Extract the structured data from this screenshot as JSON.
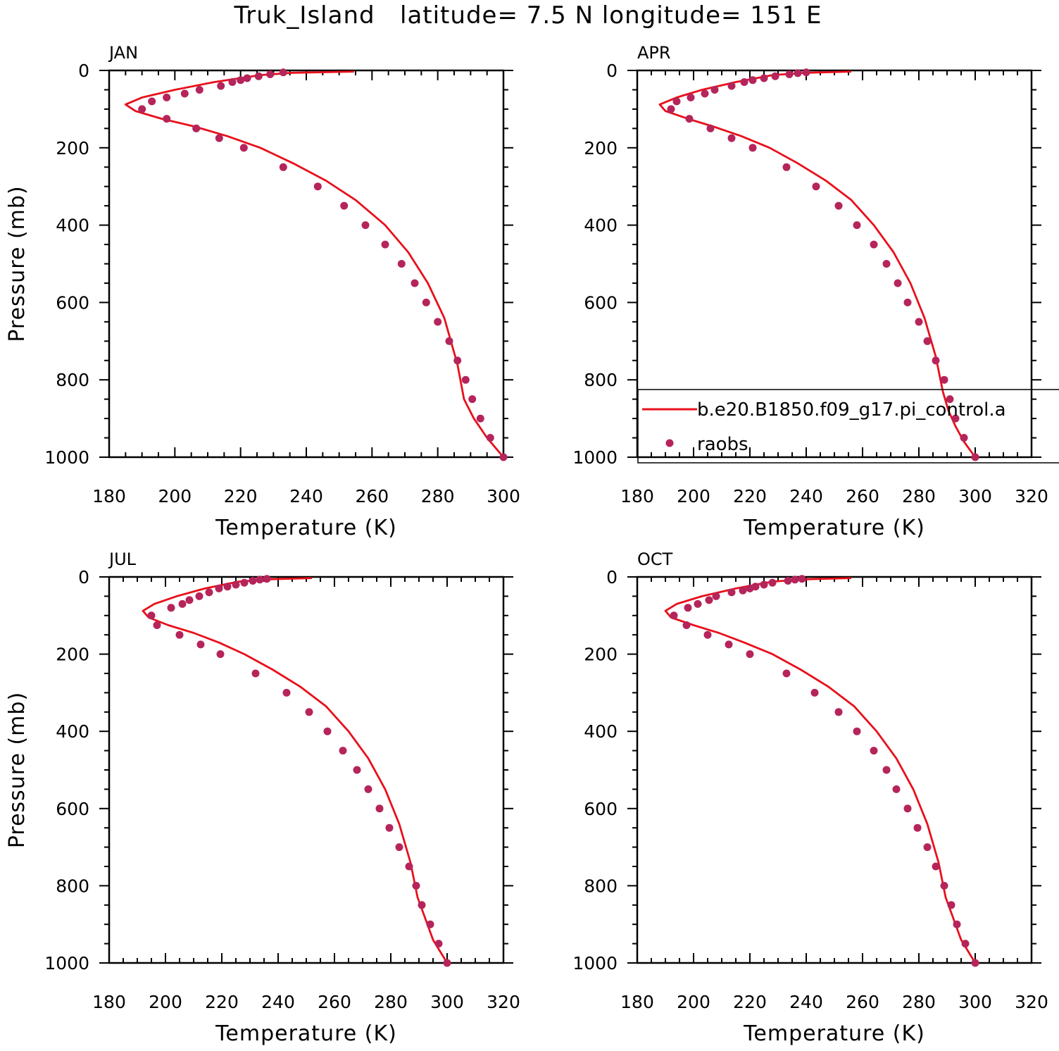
{
  "figure_title": "Truk_Island   latitude= 7.5 N longitude= 151 E",
  "legend": {
    "model_label": "b.e20.B1850.f09_g17.pi_control.a",
    "obs_label": "raobs"
  },
  "colors": {
    "model_line": "#e8101b",
    "obs_marker": "#b5245a",
    "axes": "#000000"
  },
  "chart_data": [
    {
      "type": "line",
      "panel": "JAN",
      "title": "JAN",
      "xlabel": "Temperature (K)",
      "ylabel": "Pressure (mb)",
      "xlim": [
        180,
        300
      ],
      "ylim": [
        1000,
        0
      ],
      "y_reversed": true,
      "xticks": [
        180,
        200,
        220,
        240,
        260,
        280,
        300
      ],
      "yticks": [
        0,
        200,
        400,
        600,
        800,
        1000
      ],
      "series": [
        {
          "name": "b.e20.B1850.f09_g17.pi_control.a",
          "kind": "line",
          "x": [
            254.5,
            236,
            226,
            212,
            200,
            190,
            185,
            188,
            196,
            206,
            216,
            226,
            236,
            246,
            255,
            264,
            271,
            277,
            282,
            286,
            288,
            291,
            295,
            300
          ],
          "y": [
            3,
            6,
            12,
            30,
            50,
            70,
            88,
            105,
            125,
            145,
            170,
            200,
            240,
            285,
            335,
            400,
            470,
            550,
            640,
            760,
            850,
            900,
            950,
            1000
          ]
        },
        {
          "name": "raobs",
          "kind": "scatter",
          "x": [
            233,
            229,
            225.5,
            222,
            220,
            217.5,
            214,
            207.5,
            203,
            197.5,
            193,
            190,
            197.5,
            206.5,
            213.5,
            221,
            233,
            243.5,
            251.5,
            258,
            264,
            269,
            273,
            276.5,
            280,
            283.5,
            286,
            288.5,
            290.5,
            293,
            296,
            300
          ],
          "y": [
            5,
            10,
            15,
            20,
            25,
            30,
            40,
            50,
            60,
            70,
            80,
            100,
            125,
            150,
            175,
            200,
            250,
            300,
            350,
            400,
            450,
            500,
            550,
            600,
            650,
            700,
            750,
            800,
            850,
            900,
            950,
            1000
          ]
        }
      ]
    },
    {
      "type": "line",
      "panel": "APR",
      "title": "APR",
      "xlabel": "Temperature (K)",
      "ylabel": "",
      "xlim": [
        180,
        320
      ],
      "ylim": [
        1000,
        0
      ],
      "y_reversed": true,
      "xticks": [
        180,
        200,
        220,
        240,
        260,
        280,
        300,
        320
      ],
      "yticks": [
        0,
        200,
        400,
        600,
        800,
        1000
      ],
      "series": [
        {
          "name": "b.e20.B1850.f09_g17.pi_control.a",
          "kind": "line",
          "x": [
            256,
            240,
            228,
            215,
            203,
            194,
            188,
            190,
            198,
            207,
            217,
            227,
            237,
            247,
            256,
            264,
            271,
            277,
            282,
            286,
            288.5,
            290.5,
            293,
            296,
            300
          ],
          "y": [
            3,
            6,
            12,
            30,
            50,
            70,
            88,
            105,
            125,
            145,
            170,
            200,
            240,
            285,
            335,
            400,
            470,
            550,
            640,
            740,
            830,
            880,
            920,
            960,
            1000
          ]
        },
        {
          "name": "raobs",
          "kind": "scatter",
          "x": [
            240,
            237,
            234,
            229,
            225,
            221,
            218,
            213.5,
            207.5,
            204,
            199,
            194,
            192,
            198.5,
            206,
            213.5,
            221,
            233,
            243.5,
            251.5,
            258,
            264,
            268.5,
            272.5,
            276,
            280,
            283,
            286,
            289,
            291,
            293,
            296,
            300
          ],
          "y": [
            5,
            7,
            10,
            15,
            20,
            25,
            30,
            40,
            50,
            60,
            70,
            80,
            100,
            125,
            150,
            175,
            200,
            250,
            300,
            350,
            400,
            450,
            500,
            550,
            600,
            650,
            700,
            750,
            800,
            850,
            900,
            950,
            1000
          ]
        }
      ]
    },
    {
      "type": "line",
      "panel": "JUL",
      "title": "JUL",
      "xlabel": "Temperature (K)",
      "ylabel": "Pressure (mb)",
      "xlim": [
        180,
        320
      ],
      "ylim": [
        1000,
        0
      ],
      "y_reversed": true,
      "xticks": [
        180,
        200,
        220,
        240,
        260,
        280,
        300,
        320
      ],
      "yticks": [
        0,
        200,
        400,
        600,
        800,
        1000
      ],
      "series": [
        {
          "name": "b.e20.B1850.f09_g17.pi_control.a",
          "kind": "line",
          "x": [
            252,
            237,
            226,
            214,
            204,
            196,
            192,
            194,
            201,
            210,
            219,
            228,
            238,
            248,
            257,
            265,
            272,
            278,
            283,
            287,
            289.5,
            292,
            295,
            300
          ],
          "y": [
            3,
            6,
            12,
            30,
            50,
            70,
            88,
            105,
            125,
            145,
            170,
            200,
            240,
            285,
            335,
            400,
            470,
            550,
            640,
            740,
            830,
            880,
            940,
            1000
          ]
        },
        {
          "name": "raobs",
          "kind": "scatter",
          "x": [
            236,
            233.5,
            231,
            228,
            225,
            222,
            219,
            215.5,
            212,
            208.5,
            206,
            202,
            195,
            197,
            205,
            212.5,
            219.5,
            232,
            243,
            251,
            257.5,
            263,
            268,
            272,
            276,
            279.5,
            283,
            286.5,
            289,
            291,
            294,
            297,
            300
          ],
          "y": [
            5,
            7,
            10,
            15,
            20,
            25,
            30,
            40,
            50,
            60,
            70,
            80,
            100,
            125,
            150,
            175,
            200,
            250,
            300,
            350,
            400,
            450,
            500,
            550,
            600,
            650,
            700,
            750,
            800,
            850,
            900,
            950,
            1000
          ]
        }
      ]
    },
    {
      "type": "line",
      "panel": "OCT",
      "title": "OCT",
      "xlabel": "Temperature (K)",
      "ylabel": "",
      "xlim": [
        180,
        320
      ],
      "ylim": [
        1000,
        0
      ],
      "y_reversed": true,
      "xticks": [
        180,
        200,
        220,
        240,
        260,
        280,
        300,
        320
      ],
      "yticks": [
        0,
        200,
        400,
        600,
        800,
        1000
      ],
      "series": [
        {
          "name": "b.e20.B1850.f09_g17.pi_control.a",
          "kind": "line",
          "x": [
            256,
            240,
            228,
            215,
            203,
            194,
            190,
            192,
            200,
            209,
            218,
            228,
            238,
            248,
            257,
            265,
            272,
            278,
            283,
            287,
            289.5,
            292,
            295,
            300
          ],
          "y": [
            3,
            6,
            12,
            30,
            50,
            70,
            88,
            105,
            125,
            145,
            170,
            200,
            240,
            285,
            335,
            400,
            470,
            550,
            640,
            740,
            830,
            880,
            940,
            1000
          ]
        },
        {
          "name": "raobs",
          "kind": "scatter",
          "x": [
            238.5,
            236,
            233.5,
            228,
            225,
            222,
            220,
            217.5,
            213.5,
            208,
            205.5,
            201.5,
            198,
            193,
            197.5,
            205,
            212.5,
            220,
            233,
            243,
            251.5,
            258,
            264,
            268.5,
            272,
            276,
            279.5,
            283,
            286,
            289,
            291.5,
            293.5,
            296.5,
            300
          ],
          "y": [
            5,
            7,
            10,
            15,
            20,
            25,
            30,
            35,
            40,
            50,
            60,
            70,
            80,
            100,
            125,
            150,
            175,
            200,
            250,
            300,
            350,
            400,
            450,
            500,
            550,
            600,
            650,
            700,
            750,
            800,
            850,
            900,
            950,
            1000
          ]
        }
      ]
    }
  ]
}
